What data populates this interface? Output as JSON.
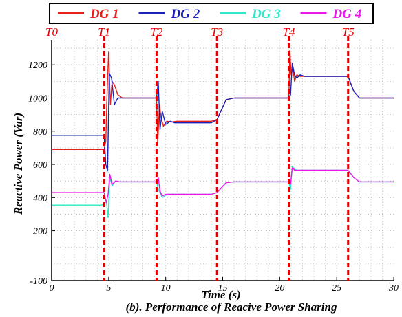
{
  "chart_data": {
    "type": "line",
    "title": "",
    "caption": "(b). Performance of Reacive Power Sharing",
    "xlabel": "Time (s)",
    "ylabel": "Reactive Power (Var)",
    "xlim": [
      0,
      30
    ],
    "ylim": [
      -100,
      1350
    ],
    "x_ticks": [
      0,
      5,
      10,
      15,
      20,
      25,
      30
    ],
    "y_ticks": [
      -100,
      200,
      400,
      600,
      800,
      1000,
      1200
    ],
    "x_tick_labels": [
      "0",
      "5",
      "10",
      "15",
      "20",
      "25",
      "30"
    ],
    "y_tick_labels": [
      "-100",
      "200",
      "400",
      "600",
      "800",
      "1000",
      "1200"
    ],
    "grid": true,
    "legend_position": "top",
    "events": [
      {
        "label": "T0",
        "x": 0
      },
      {
        "label": "T1",
        "x": 4.6
      },
      {
        "label": "T2",
        "x": 9.2
      },
      {
        "label": "T3",
        "x": 14.5
      },
      {
        "label": "T4",
        "x": 20.8
      },
      {
        "label": "T5",
        "x": 26.0
      }
    ],
    "series": [
      {
        "name": "DG 1",
        "color": "#e8201a",
        "x": [
          0,
          4.4,
          4.6,
          4.75,
          4.85,
          5.0,
          5.15,
          5.3,
          5.5,
          5.8,
          6.2,
          9.2,
          9.3,
          9.45,
          9.6,
          9.8,
          10.1,
          10.5,
          11,
          14.0,
          14.5,
          15.3,
          16.0,
          20.8,
          20.9,
          21.0,
          21.15,
          21.3,
          21.5,
          21.8,
          22.2,
          22.6,
          26.0,
          26.5,
          27.0,
          30.0
        ],
        "values": [
          690,
          690,
          690,
          740,
          1000,
          1280,
          960,
          1100,
          1080,
          1020,
          1000,
          1000,
          720,
          960,
          880,
          830,
          860,
          855,
          860,
          860,
          870,
          990,
          1000,
          1000,
          1290,
          1140,
          1180,
          1100,
          1140,
          1130,
          1130,
          1130,
          1130,
          1040,
          1000,
          1000
        ]
      },
      {
        "name": "DG 2",
        "color": "#1a22b8",
        "x": [
          0,
          4.4,
          4.6,
          4.75,
          4.9,
          5.05,
          5.25,
          5.5,
          5.8,
          6.2,
          9.2,
          9.35,
          9.5,
          9.7,
          10.0,
          10.4,
          10.8,
          14.0,
          14.5,
          15.3,
          16.0,
          20.8,
          20.95,
          21.1,
          21.3,
          21.5,
          21.8,
          22.2,
          22.6,
          26.0,
          26.5,
          27.0,
          30.0
        ],
        "values": [
          775,
          775,
          775,
          600,
          560,
          1150,
          1120,
          960,
          1000,
          1000,
          1000,
          1100,
          810,
          920,
          840,
          860,
          850,
          850,
          870,
          990,
          1000,
          1000,
          1020,
          1210,
          1140,
          1120,
          1140,
          1130,
          1130,
          1130,
          1040,
          1000,
          1000
        ]
      },
      {
        "name": "DG 3",
        "color": "#2ee8c8",
        "x": [
          0,
          4.4,
          4.6,
          4.8,
          4.95,
          5.1,
          5.3,
          5.6,
          6.0,
          9.2,
          9.35,
          9.5,
          9.7,
          10.0,
          10.4,
          14.0,
          14.5,
          15.3,
          16.0,
          20.8,
          20.95,
          21.1,
          21.3,
          21.6,
          22.0,
          26.0,
          26.5,
          27.0,
          30.0
        ],
        "values": [
          355,
          355,
          360,
          380,
          280,
          520,
          470,
          500,
          495,
          495,
          450,
          430,
          400,
          415,
          420,
          420,
          430,
          490,
          495,
          495,
          450,
          590,
          570,
          565,
          565,
          565,
          520,
          495,
          495
        ]
      },
      {
        "name": "DG 4",
        "color": "#e81ae8",
        "x": [
          0,
          4.4,
          4.6,
          4.8,
          4.95,
          5.1,
          5.3,
          5.6,
          6.0,
          9.2,
          9.35,
          9.5,
          9.7,
          10.0,
          10.4,
          14.0,
          14.5,
          15.3,
          16.0,
          20.8,
          20.95,
          21.1,
          21.3,
          21.6,
          22.0,
          26.0,
          26.5,
          27.0,
          30.0
        ],
        "values": [
          430,
          430,
          430,
          370,
          420,
          540,
          480,
          500,
          495,
          495,
          520,
          440,
          410,
          420,
          420,
          420,
          430,
          490,
          495,
          495,
          480,
          580,
          565,
          565,
          565,
          565,
          520,
          495,
          495
        ]
      }
    ]
  }
}
